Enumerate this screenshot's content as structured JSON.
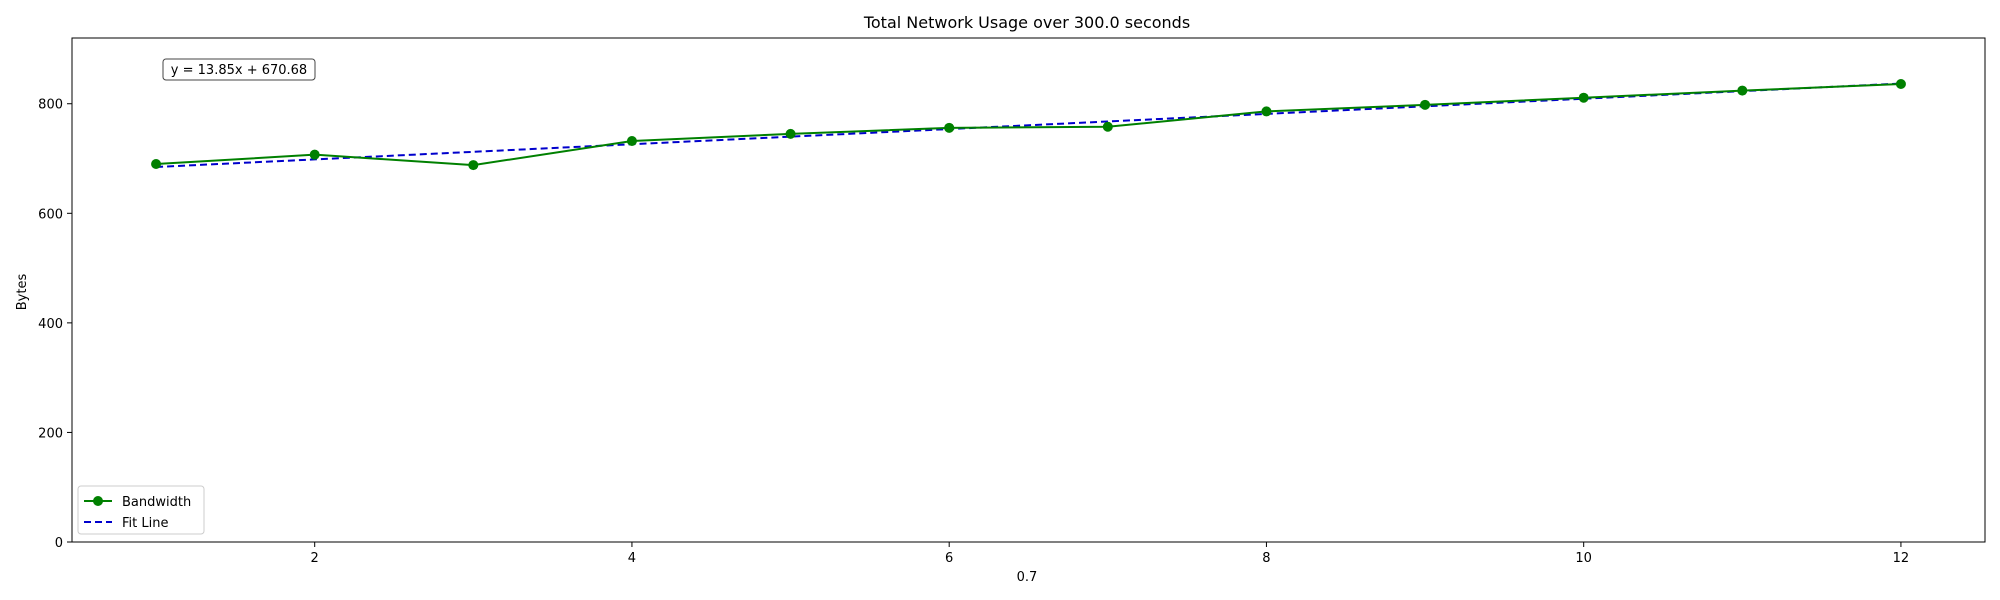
{
  "chart_data": {
    "type": "line",
    "title": "Total Network Usage over 300.0 seconds",
    "xlabel": "0.7",
    "ylabel": "Bytes",
    "xlim": [
      0.47,
      12.53
    ],
    "ylim": [
      0,
      920
    ],
    "xticks": [
      2,
      4,
      6,
      8,
      10,
      12
    ],
    "yticks": [
      0,
      200,
      400,
      600,
      800
    ],
    "grid": false,
    "legend_position": "lower-left",
    "series": [
      {
        "name": "Bandwidth",
        "color": "#008000",
        "style": "solid-with-markers",
        "x": [
          1,
          2,
          3,
          4,
          5,
          6,
          7,
          8,
          9,
          10,
          11,
          12
        ],
        "y": [
          690,
          707,
          688,
          732,
          745,
          756,
          758,
          786,
          798,
          811,
          824,
          836
        ]
      },
      {
        "name": "Fit Line",
        "color": "#0000cc",
        "style": "dashed",
        "x": [
          1,
          2,
          3,
          4,
          5,
          6,
          7,
          8,
          9,
          10,
          11,
          12
        ],
        "y": [
          684.53,
          698.38,
          712.23,
          726.08,
          739.93,
          753.78,
          767.63,
          781.48,
          795.33,
          809.18,
          823.03,
          836.88
        ]
      }
    ],
    "annotation": "y = 13.85x + 670.68"
  }
}
